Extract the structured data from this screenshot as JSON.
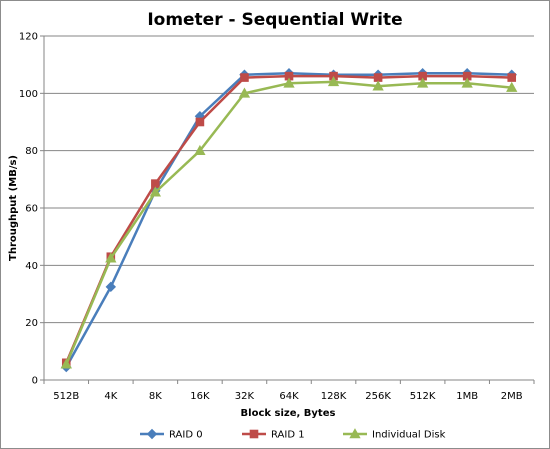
{
  "chart_data": {
    "type": "line",
    "title": "Iometer - Sequential Write",
    "xlabel": "Block size, Bytes",
    "ylabel": "Throughput (MB/s)",
    "categories": [
      "512B",
      "4K",
      "8K",
      "16K",
      "32K",
      "64K",
      "128K",
      "256K",
      "512K",
      "1MB",
      "2MB"
    ],
    "ylim": [
      0,
      120
    ],
    "yticks": [
      0,
      20,
      40,
      60,
      80,
      100,
      120
    ],
    "grid": true,
    "legend_position": "bottom",
    "series": [
      {
        "name": "RAID 0",
        "color": "#4a7ebb",
        "marker": "diamond",
        "values": [
          4.5,
          32.5,
          66,
          92,
          106.5,
          107,
          106.5,
          106.5,
          107,
          107,
          106.5
        ]
      },
      {
        "name": "RAID 1",
        "color": "#be4b48",
        "marker": "square",
        "values": [
          6,
          43,
          68.5,
          90,
          105.5,
          106,
          106,
          105.5,
          106,
          106,
          105.5
        ]
      },
      {
        "name": "Individual Disk",
        "color": "#98b954",
        "marker": "triangle",
        "values": [
          5.5,
          42.5,
          65.5,
          80,
          100,
          103.5,
          104,
          102.5,
          103.5,
          103.5,
          102
        ]
      }
    ]
  }
}
